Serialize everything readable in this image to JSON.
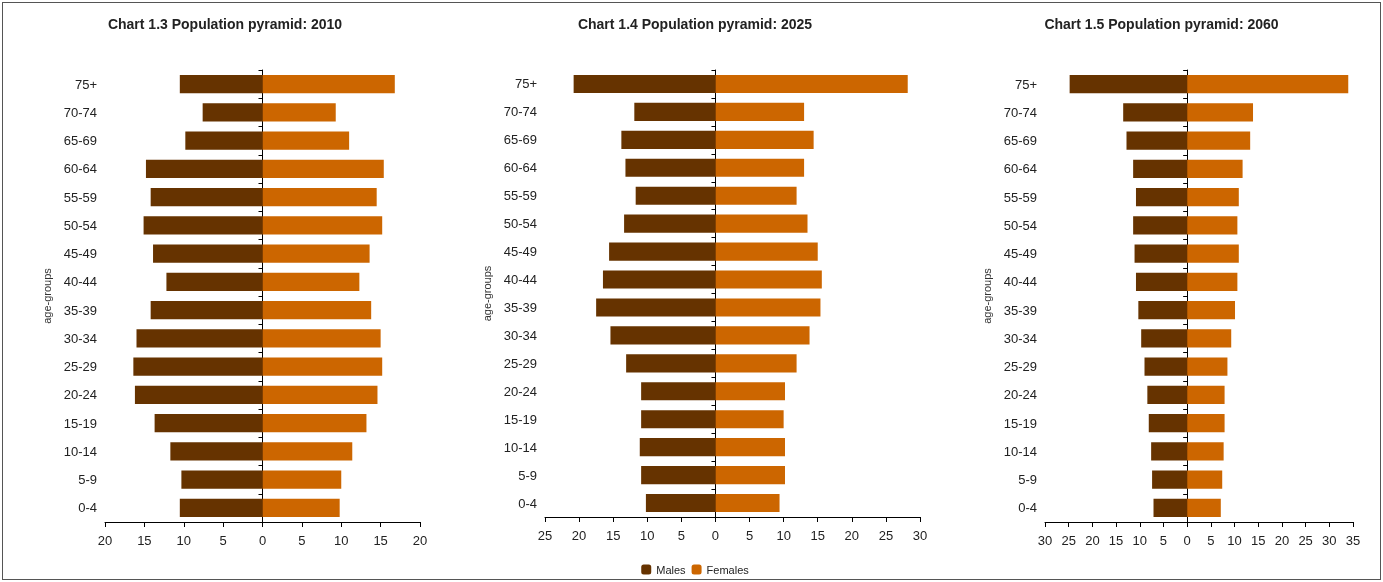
{
  "chart_data": [
    {
      "type": "bar",
      "orientation": "horizontal",
      "stacked": true,
      "title": "Chart 1.3 Population pyramid: 2010",
      "ylabel": "age-groups",
      "legend": false,
      "categories": [
        "75+",
        "70-74",
        "65-69",
        "60-64",
        "55-59",
        "50-54",
        "45-49",
        "40-44",
        "35-39",
        "30-34",
        "25-29",
        "20-24",
        "15-19",
        "10-14",
        "5-9",
        "0-4"
      ],
      "series": [
        {
          "color": "#663300",
          "values": [
            -10.5,
            -7.6,
            -9.8,
            -14.8,
            -14.2,
            -15.1,
            -13.9,
            -12.2,
            -14.2,
            -16.0,
            -16.4,
            -16.2,
            -13.7,
            -11.7,
            -10.3,
            -10.5
          ]
        },
        {
          "color": "#cc6600",
          "values": [
            16.8,
            9.3,
            11.0,
            15.4,
            14.5,
            15.2,
            13.6,
            12.3,
            13.8,
            15.0,
            15.2,
            14.6,
            13.2,
            11.4,
            10.0,
            9.8
          ]
        }
      ],
      "xlim": [
        -20,
        20
      ],
      "xticks": [
        {
          "value": -20,
          "label": "20"
        },
        {
          "value": -15,
          "label": "15"
        },
        {
          "value": -10,
          "label": "10"
        },
        {
          "value": -5,
          "label": "5"
        },
        0,
        5,
        10,
        15,
        20
      ]
    },
    {
      "type": "bar",
      "orientation": "horizontal",
      "stacked": true,
      "title": "Chart 1.4 Population pyramid: 2025",
      "ylabel": "age-groups",
      "legend": "bottom",
      "categories": [
        "75+",
        "70-74",
        "65-69",
        "60-64",
        "55-59",
        "50-54",
        "45-49",
        "40-44",
        "35-39",
        "30-34",
        "25-29",
        "20-24",
        "15-19",
        "10-14",
        "5-9",
        "0-4"
      ],
      "series": [
        {
          "name": "Males",
          "color": "#663300",
          "values": [
            -20.8,
            -11.9,
            -13.8,
            -13.2,
            -11.7,
            -13.4,
            -15.6,
            -16.5,
            -17.5,
            -15.4,
            -13.1,
            -10.9,
            -10.9,
            -11.1,
            -10.9,
            -10.2
          ]
        },
        {
          "name": "Females",
          "color": "#cc6600",
          "values": [
            28.2,
            13.0,
            14.4,
            13.0,
            11.9,
            13.5,
            15.0,
            15.6,
            15.4,
            13.8,
            11.9,
            10.2,
            10.0,
            10.2,
            10.2,
            9.4
          ]
        }
      ],
      "xlim": [
        -25,
        30
      ],
      "xticks": [
        {
          "value": -25,
          "label": "25"
        },
        {
          "value": -20,
          "label": "20"
        },
        {
          "value": -15,
          "label": "15"
        },
        {
          "value": -10,
          "label": "10"
        },
        {
          "value": -5,
          "label": "5"
        },
        0,
        5,
        10,
        15,
        20,
        25,
        30
      ]
    },
    {
      "type": "bar",
      "orientation": "horizontal",
      "stacked": true,
      "title": "Chart 1.5 Population pyramid: 2060",
      "ylabel": "age-groups",
      "legend": false,
      "categories": [
        "75+",
        "70-74",
        "65-69",
        "60-64",
        "55-59",
        "50-54",
        "45-49",
        "40-44",
        "35-39",
        "30-34",
        "25-29",
        "20-24",
        "15-19",
        "10-14",
        "5-9",
        "0-4"
      ],
      "series": [
        {
          "color": "#663300",
          "values": [
            -24.8,
            -13.5,
            -12.8,
            -11.4,
            -10.8,
            -11.4,
            -11.1,
            -10.8,
            -10.3,
            -9.7,
            -9.0,
            -8.4,
            -8.1,
            -7.6,
            -7.4,
            -7.1
          ]
        },
        {
          "color": "#cc6600",
          "values": [
            34,
            13.9,
            13.3,
            11.7,
            10.9,
            10.6,
            10.9,
            10.6,
            10.1,
            9.3,
            8.5,
            7.9,
            7.9,
            7.7,
            7.4,
            7.1
          ]
        }
      ],
      "xlim": [
        -30,
        35
      ],
      "xticks": [
        {
          "value": -30,
          "label": "30"
        },
        {
          "value": -25,
          "label": "25"
        },
        {
          "value": -20,
          "label": "20"
        },
        {
          "value": -15,
          "label": "15"
        },
        {
          "value": -10,
          "label": "10"
        },
        {
          "value": -5,
          "label": "5"
        },
        0,
        5,
        10,
        15,
        20,
        25,
        30,
        35
      ]
    }
  ]
}
